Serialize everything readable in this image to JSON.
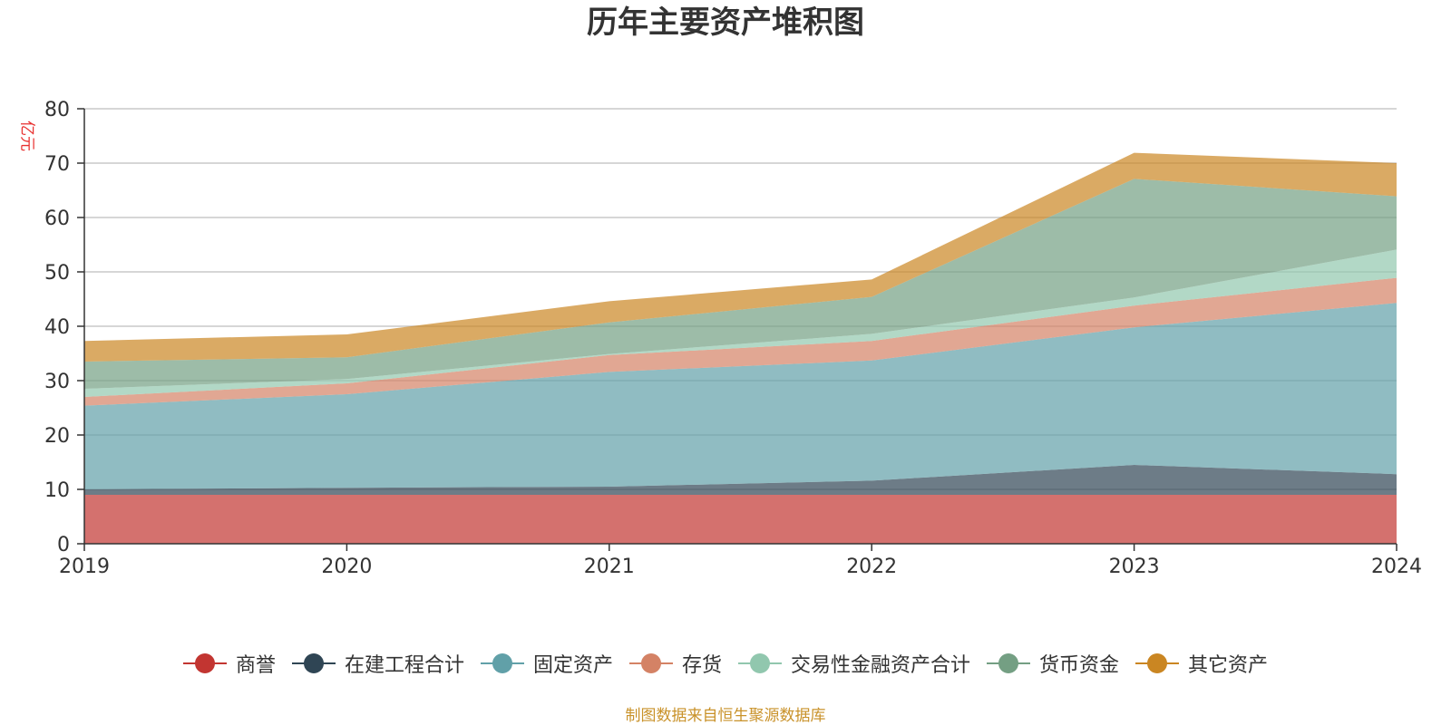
{
  "chart_data": {
    "type": "area",
    "stacked": true,
    "title": "历年主要资产堆积图",
    "unit_label": "亿元",
    "categories": [
      "2019",
      "2020",
      "2021",
      "2022",
      "2023",
      "2024"
    ],
    "ylim": [
      0,
      80
    ],
    "yticks": [
      0,
      10,
      20,
      30,
      40,
      50,
      60,
      70,
      80
    ],
    "grid": true,
    "legend_position": "bottom",
    "series": [
      {
        "name": "商誉",
        "color": "#c23531",
        "values": [
          9.0,
          9.0,
          9.0,
          9.0,
          9.0,
          9.0
        ]
      },
      {
        "name": "在建工程合计",
        "color": "#2f4554",
        "values": [
          1.0,
          1.3,
          1.5,
          2.6,
          5.5,
          3.8
        ]
      },
      {
        "name": "固定资产",
        "color": "#61a0a8",
        "values": [
          15.4,
          17.2,
          21.1,
          22.1,
          25.3,
          31.5
        ]
      },
      {
        "name": "存货",
        "color": "#d48265",
        "values": [
          1.6,
          2.0,
          3.1,
          3.6,
          4.0,
          4.6
        ]
      },
      {
        "name": "交易性金融资产合计",
        "color": "#91c7ae",
        "values": [
          1.5,
          0.8,
          0.2,
          1.3,
          1.5,
          5.2
        ]
      },
      {
        "name": "货币资金",
        "color": "#749f83",
        "values": [
          5.0,
          4.0,
          5.8,
          6.8,
          21.8,
          9.8
        ]
      },
      {
        "name": "其它资产",
        "color": "#ca8622",
        "values": [
          3.8,
          4.2,
          3.9,
          3.2,
          4.8,
          6.1
        ]
      }
    ]
  },
  "source_note": "制图数据来自恒生聚源数据库"
}
